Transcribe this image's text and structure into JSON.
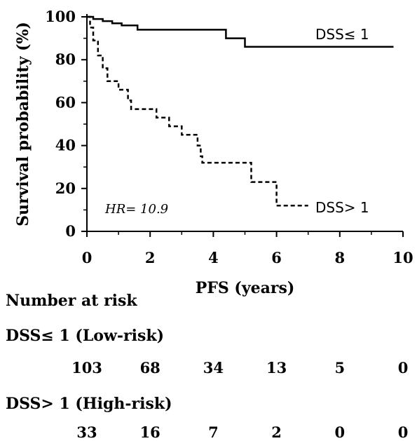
{
  "chart_data": {
    "type": "line",
    "xlabel": "PFS (years)",
    "ylabel": "Survival probability (%)",
    "xlim": [
      0,
      10
    ],
    "ylim": [
      0,
      100
    ],
    "xticks": [
      "0",
      "2",
      "4",
      "6",
      "8",
      "10"
    ],
    "yticks": [
      "0",
      "20",
      "40",
      "60",
      "80",
      "100"
    ],
    "grid": false,
    "annotation": "HR= 10.9",
    "series": [
      {
        "name": "DSS≤ 1",
        "style": "solid",
        "points": [
          [
            0,
            100
          ],
          [
            0.2,
            100
          ],
          [
            0.2,
            99
          ],
          [
            0.5,
            99
          ],
          [
            0.5,
            98
          ],
          [
            0.8,
            98
          ],
          [
            0.8,
            97
          ],
          [
            1.1,
            97
          ],
          [
            1.1,
            96
          ],
          [
            1.6,
            96
          ],
          [
            1.6,
            94
          ],
          [
            2.5,
            94
          ],
          [
            4.4,
            94
          ],
          [
            4.4,
            90
          ],
          [
            5.0,
            90
          ],
          [
            5.0,
            86
          ],
          [
            9.7,
            86
          ]
        ]
      },
      {
        "name": "DSS> 1",
        "style": "dashed",
        "points": [
          [
            0,
            100
          ],
          [
            0.1,
            100
          ],
          [
            0.1,
            95
          ],
          [
            0.2,
            95
          ],
          [
            0.2,
            89
          ],
          [
            0.35,
            89
          ],
          [
            0.35,
            82
          ],
          [
            0.5,
            82
          ],
          [
            0.5,
            76
          ],
          [
            0.65,
            76
          ],
          [
            0.65,
            70
          ],
          [
            1.0,
            70
          ],
          [
            1.0,
            66
          ],
          [
            1.3,
            66
          ],
          [
            1.3,
            61
          ],
          [
            1.4,
            61
          ],
          [
            1.4,
            57
          ],
          [
            2.2,
            57
          ],
          [
            2.2,
            53
          ],
          [
            2.6,
            53
          ],
          [
            2.6,
            49
          ],
          [
            3.0,
            49
          ],
          [
            3.0,
            45
          ],
          [
            3.5,
            45
          ],
          [
            3.5,
            40
          ],
          [
            3.6,
            40
          ],
          [
            3.6,
            35
          ],
          [
            3.65,
            35
          ],
          [
            3.65,
            32
          ],
          [
            5.2,
            32
          ],
          [
            5.2,
            23
          ],
          [
            6.0,
            23
          ],
          [
            6.0,
            12
          ],
          [
            7.0,
            12
          ]
        ]
      }
    ]
  },
  "risk_table": {
    "title": "Number at risk",
    "low_label": "DSS≤ 1 (Low-risk)",
    "high_label": "DSS> 1 (High-risk)",
    "times": [
      0,
      2,
      4,
      6,
      8,
      10
    ],
    "low_counts": [
      "103",
      "68",
      "34",
      "13",
      "5",
      "0"
    ],
    "high_counts": [
      "33",
      "16",
      "7",
      "2",
      "0",
      "0"
    ]
  }
}
